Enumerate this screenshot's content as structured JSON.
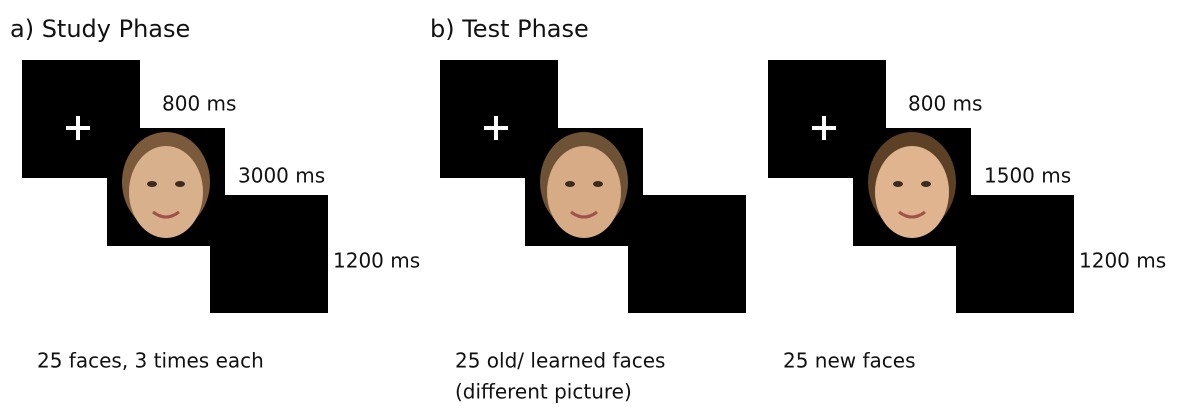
{
  "panels": [
    {
      "title": "a) Study Phase",
      "sequences": [
        {
          "durations": [
            "800 ms",
            "3000 ms",
            "1200 ms"
          ],
          "caption": [
            "25 faces, 3 times each"
          ]
        }
      ]
    },
    {
      "title": "b) Test Phase",
      "sequences": [
        {
          "caption": [
            "25 old/ learned faces",
            "(different picture)"
          ]
        },
        {
          "durations": [
            "800 ms",
            "1500 ms",
            "1200 ms"
          ],
          "caption": [
            "25 new faces"
          ]
        }
      ]
    }
  ]
}
